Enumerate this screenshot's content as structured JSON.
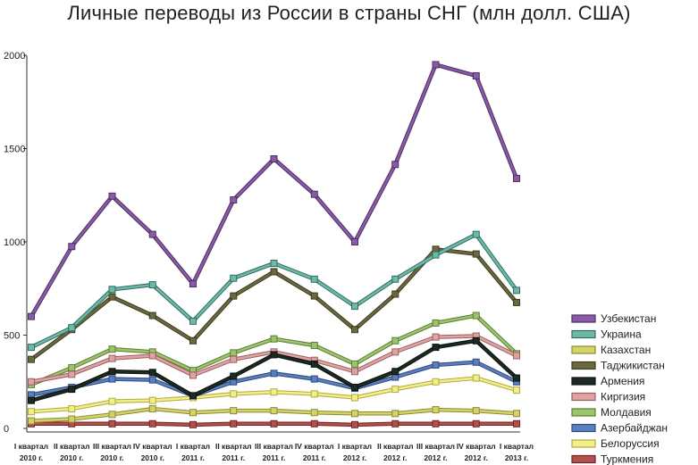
{
  "chart_data": {
    "type": "line",
    "title": "Личные переводы из России в страны СНГ (млн долл. США)",
    "ylim": [
      0,
      2000
    ],
    "yticks": [
      0,
      500,
      1000,
      1500,
      2000
    ],
    "grid": false,
    "legend_position": "right",
    "categories": [
      [
        "I квартал",
        "2010 г."
      ],
      [
        "II квартал",
        "2010 г."
      ],
      [
        "III квартал",
        "2010 г."
      ],
      [
        "IV квартал",
        "2010 г."
      ],
      [
        "I квартал",
        "2011 г."
      ],
      [
        "II квартал",
        "2011 г."
      ],
      [
        "III квартал",
        "2011 г."
      ],
      [
        "IV квартал",
        "2011 г."
      ],
      [
        "I квартал",
        "2012 г."
      ],
      [
        "II квартал",
        "2012 г."
      ],
      [
        "III квартал",
        "2012 г."
      ],
      [
        "IV квартал",
        "2012 г."
      ],
      [
        "I квартал",
        "2013 г."
      ]
    ],
    "series": [
      {
        "name": "Узбекистан",
        "color": "#8a5aa6",
        "dark": "#4b2f63",
        "values": [
          600,
          975,
          1245,
          1040,
          775,
          1225,
          1445,
          1255,
          1000,
          1415,
          1950,
          1890,
          1340
        ]
      },
      {
        "name": "Украина",
        "color": "#6fb8a8",
        "dark": "#2e6f62",
        "values": [
          435,
          540,
          745,
          770,
          575,
          805,
          885,
          800,
          655,
          800,
          930,
          1040,
          740
        ]
      },
      {
        "name": "Казахстан",
        "color": "#d4d36a",
        "dark": "#8c8a33",
        "values": [
          40,
          50,
          75,
          105,
          85,
          95,
          95,
          85,
          80,
          80,
          100,
          95,
          80
        ]
      },
      {
        "name": "Таджикистан",
        "color": "#6b6840",
        "dark": "#3d3b22",
        "values": [
          370,
          530,
          705,
          605,
          470,
          710,
          840,
          710,
          530,
          720,
          960,
          935,
          675
        ]
      },
      {
        "name": "Армения",
        "color": "#1c2a22",
        "dark": "#0b120e",
        "values": [
          150,
          210,
          305,
          300,
          175,
          280,
          395,
          345,
          220,
          305,
          435,
          470,
          270
        ]
      },
      {
        "name": "Киргизия",
        "color": "#e0a3a3",
        "dark": "#9b5f5f",
        "values": [
          250,
          290,
          375,
          390,
          285,
          370,
          410,
          365,
          305,
          410,
          490,
          495,
          390
        ]
      },
      {
        "name": "Молдавия",
        "color": "#9cc46a",
        "dark": "#5b7d35",
        "values": [
          235,
          325,
          425,
          410,
          310,
          405,
          480,
          445,
          345,
          470,
          565,
          605,
          400
        ]
      },
      {
        "name": "Азербайджан",
        "color": "#5b7ebe",
        "dark": "#2e4a80",
        "values": [
          180,
          220,
          265,
          260,
          175,
          250,
          295,
          265,
          215,
          275,
          340,
          355,
          250
        ]
      },
      {
        "name": "Белоруссия",
        "color": "#f2ee8a",
        "dark": "#b0aa3e",
        "values": [
          90,
          105,
          145,
          150,
          165,
          185,
          195,
          185,
          165,
          210,
          250,
          270,
          205
        ]
      },
      {
        "name": "Туркмения",
        "color": "#b3504e",
        "dark": "#6d2625",
        "values": [
          25,
          25,
          25,
          25,
          20,
          25,
          25,
          25,
          20,
          25,
          25,
          25,
          25
        ]
      }
    ]
  }
}
